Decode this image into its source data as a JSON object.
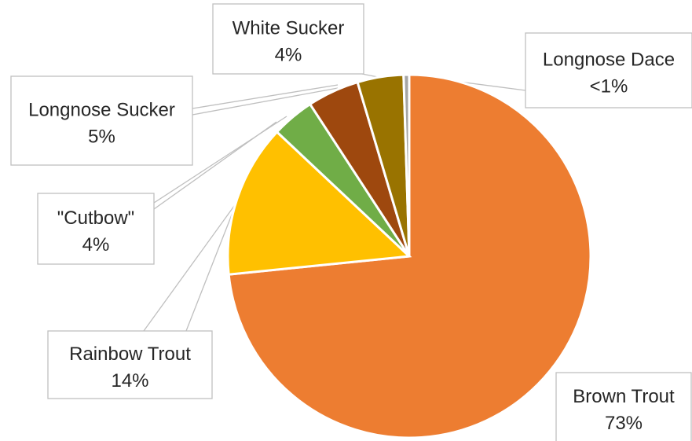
{
  "chart_data": {
    "type": "pie",
    "title": "",
    "start_angle_deg": 0,
    "direction": "clockwise",
    "slices": [
      {
        "name": "Brown Trout",
        "value": 73.4,
        "label": "73%",
        "color": "#ED7D31"
      },
      {
        "name": "Rainbow Trout",
        "value": 13.6,
        "label": "14%",
        "color": "#FFC000"
      },
      {
        "name": "\"Cutbow\"",
        "value": 3.8,
        "label": "4%",
        "color": "#70AD47"
      },
      {
        "name": "Longnose Sucker",
        "value": 4.6,
        "label": "5%",
        "color": "#9E480E"
      },
      {
        "name": "White Sucker",
        "value": 4.1,
        "label": "4%",
        "color": "#997300"
      },
      {
        "name": "Longnose Dace",
        "value": 0.5,
        "label": "<1%",
        "color": "#A5A5A5"
      }
    ]
  }
}
